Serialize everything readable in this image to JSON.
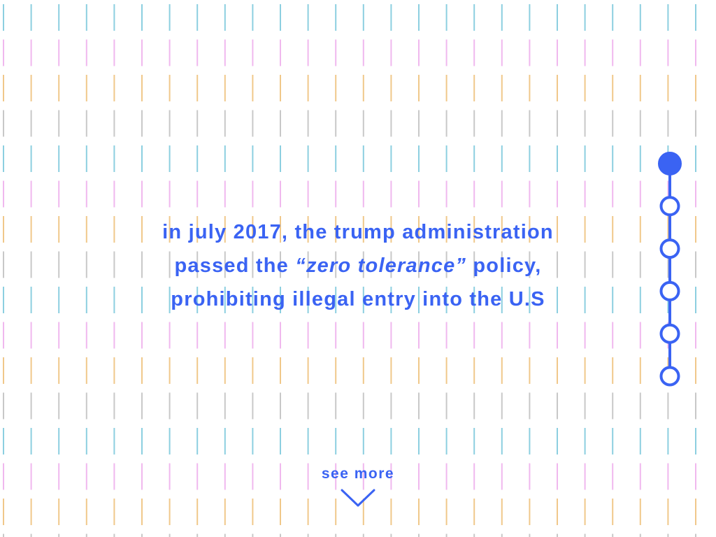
{
  "headline": {
    "lines": [
      {
        "pre": "in july 2017, the trump administration",
        "em": "",
        "post": ""
      },
      {
        "pre": "passed the ",
        "em": "“zero tolerance”",
        "post": " policy,"
      },
      {
        "pre": "prohibiting illegal entry into the U.S",
        "em": "",
        "post": ""
      }
    ]
  },
  "progress": {
    "total_steps": 6,
    "current_step": 1
  },
  "see_more": {
    "label": "see more",
    "icon": "chevron-down-icon"
  },
  "colors": {
    "accent": "#3a63f3",
    "pattern_rows": [
      "#8ccfe0",
      "#f0b8ee",
      "#f0c88a",
      "#c8c8c8"
    ],
    "background": "#ffffff"
  }
}
